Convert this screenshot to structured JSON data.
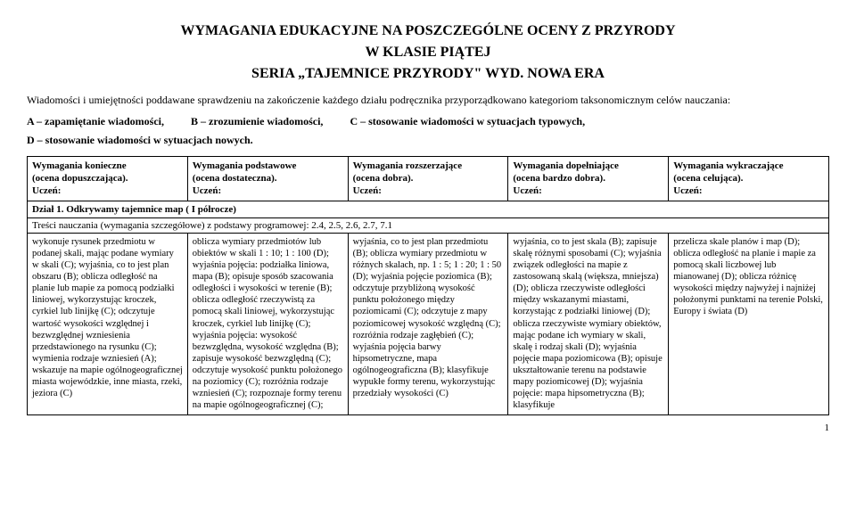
{
  "titles": {
    "t1": "WYMAGANIA EDUKACYJNE NA POSZCZEGÓLNE OCENY Z PRZYRODY",
    "t2": "W KLASIE PIĄTEJ",
    "t3": "SERIA „TAJEMNICE PRZYRODY\" WYD. NOWA ERA"
  },
  "intro": "Wiadomości i umiejętności poddawane sprawdzeniu na zakończenie każdego działu podręcznika przyporządkowano kategoriom taksonomicznym celów nauczania:",
  "legend": {
    "a": "A – zapamiętanie wiadomości,",
    "b": "B – zrozumienie wiadomości,",
    "c": "C – stosowanie wiadomości w sytuacjach typowych,",
    "d": "D – stosowanie wiadomości w sytuacjach nowych."
  },
  "headers": {
    "h1a": "Wymagania konieczne",
    "h1b": "(ocena dopuszczająca).",
    "h1c": "Uczeń:",
    "h2a": "Wymagania podstawowe",
    "h2b": "(ocena dostateczna).",
    "h2c": "Uczeń:",
    "h3a": "Wymagania rozszerzające",
    "h3b": "(ocena dobra).",
    "h3c": "Uczeń:",
    "h4a": "Wymagania dopełniające",
    "h4b": "(ocena bardzo dobra).",
    "h4c": "Uczeń:",
    "h5a": "Wymagania wykraczające",
    "h5b": "(ocena celująca).",
    "h5c": "Uczeń:"
  },
  "section": "Dział 1. Odkrywamy tajemnice map  ( I półrocze)",
  "subsection": "Treści nauczania (wymagania szczegółowe) z podstawy programowej: 2.4, 2.5, 2.6, 2.7, 7.1",
  "cells": {
    "c1": "wykonuje rysunek przedmiotu w podanej skali, mając podane wymiary w skali (C); wyjaśnia, co to jest plan obszaru (B); oblicza odległość na planie lub mapie za pomocą podziałki liniowej, wykorzystując kroczek, cyrkiel lub linijkę (C); odczytuje wartość wysokości względnej i bezwzględnej wzniesienia przedstawionego na rysunku (C); wymienia rodzaje wzniesień (A); wskazuje na mapie ogólnogeograficznej miasta wojewódzkie, inne miasta, rzeki, jeziora (C)",
    "c2": "oblicza wymiary przedmiotów lub obiektów w skali 1 : 10; 1 : 100 (D); wyjaśnia pojęcia: podziałka liniowa, mapa (B); opisuje sposób szacowania odległości i wysokości w terenie (B); oblicza odległość rzeczywistą za pomocą skali liniowej, wykorzystując kroczek, cyrkiel lub linijkę (C); wyjaśnia pojęcia: wysokość bezwzględna, wysokość względna (B); zapisuje wysokość bezwzględną (C); odczytuje wysokość punktu położonego na poziomicy (C); rozróżnia rodzaje wzniesień (C); rozpoznaje formy terenu na mapie ogólnogeograficznej (C);",
    "c3": "wyjaśnia, co to jest plan przedmiotu (B); oblicza wymiary przedmiotu w różnych skalach, np. 1 : 5; 1 : 20; 1 : 50 (D); wyjaśnia pojęcie poziomica (B); odczytuje przybliżoną wysokość punktu położonego między poziomicami (C); odczytuje z mapy poziomicowej wysokość względną (C); rozróżnia rodzaje zagłębień (C); wyjaśnia pojęcia barwy hipsometryczne, mapa ogólnogeograficzna (B); klasyfikuje wypukłe formy terenu, wykorzystując przedziały wysokości (C)",
    "c4": "wyjaśnia, co to jest skala (B); zapisuje skalę różnymi sposobami (C); wyjaśnia związek odległości na mapie z zastosowaną skalą (większa, mniejsza) (D); oblicza rzeczywiste odległości między wskazanymi miastami, korzystając z podziałki liniowej (D); oblicza rzeczywiste wymiary obiektów, mając podane ich wymiary w skali, skalę i rodzaj skali (D); wyjaśnia pojęcie mapa poziomicowa (B); opisuje ukształtowanie terenu na podstawie mapy poziomicowej (D); wyjaśnia pojęcie: mapa hipsometryczna (B); klasyfikuje",
    "c5": "przelicza skale planów i map (D); oblicza odległość na planie i mapie za pomocą skali liczbowej lub mianowanej (D); oblicza różnicę wysokości między najwyżej i najniżej położonymi punktami na terenie Polski, Europy i świata (D)"
  },
  "page": "1"
}
